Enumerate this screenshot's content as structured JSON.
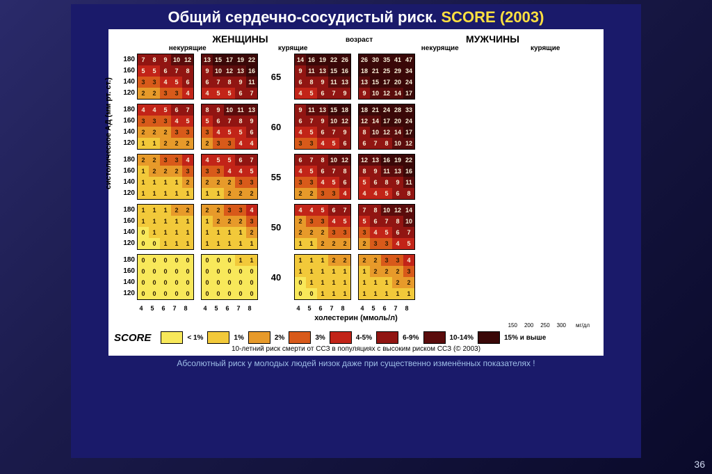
{
  "title_prefix": "Общий сердечно-сосудистый риск. ",
  "title_word": "SCORE",
  "title_year": " (2003)",
  "header_women": "ЖЕНЩИНЫ",
  "header_men": "МУЖЧИНЫ",
  "header_age": "возраст",
  "sub_nonsm": "некурящие",
  "sub_sm": "курящие",
  "y_axis": "систолическое АД  (мм рт. ст.)",
  "x_axis": "холестерин  (ммоль/л)",
  "bp_labels": [
    "180",
    "160",
    "140",
    "120"
  ],
  "chol_labels": [
    "4",
    "5",
    "6",
    "7",
    "8"
  ],
  "mgdl": [
    "150",
    "200",
    "250",
    "300"
  ],
  "mgdl_unit": "мг/дл",
  "ages": [
    "65",
    "60",
    "55",
    "50",
    "40"
  ],
  "colors": {
    "c0": "#f8e85a",
    "c1": "#f2c93a",
    "c2": "#e79a2a",
    "c3": "#d85a1a",
    "c4": "#c22418",
    "c5": "#911512",
    "c6": "#5a0c0c",
    "c7": "#3a0808"
  },
  "text_dark": "#2a1a00",
  "text_light": "#f8f0d8",
  "legend_labels": [
    "< 1%",
    "1%",
    "2%",
    "3%",
    "4-5%",
    "6-9%",
    "10-14%",
    "15% и выше"
  ],
  "score_word": "SCORE",
  "source": "10-летний риск смерти от ССЗ в популяциях с высоким риском ССЗ (© 2003)",
  "footnote": "Абсолютный риск у молодых людей низок даже при существенно изменённых показателях !",
  "pagenum": "36",
  "grids": {
    "65": {
      "wn": [
        [
          7,
          8,
          9,
          10,
          12
        ],
        [
          5,
          5,
          6,
          7,
          8
        ],
        [
          3,
          3,
          4,
          5,
          6
        ],
        [
          2,
          2,
          3,
          3,
          4
        ]
      ],
      "ws": [
        [
          13,
          15,
          17,
          19,
          22
        ],
        [
          9,
          10,
          12,
          13,
          16
        ],
        [
          6,
          7,
          8,
          9,
          11
        ],
        [
          4,
          5,
          5,
          6,
          7
        ]
      ],
      "mn": [
        [
          14,
          16,
          19,
          22,
          26
        ],
        [
          9,
          11,
          13,
          15,
          16
        ],
        [
          6,
          8,
          9,
          11,
          13
        ],
        [
          4,
          5,
          6,
          7,
          9
        ]
      ],
      "ms": [
        [
          26,
          30,
          35,
          41,
          47
        ],
        [
          18,
          21,
          25,
          29,
          34
        ],
        [
          13,
          15,
          17,
          20,
          24
        ],
        [
          9,
          10,
          12,
          14,
          17
        ]
      ]
    },
    "60": {
      "wn": [
        [
          4,
          4,
          5,
          6,
          7
        ],
        [
          3,
          3,
          3,
          4,
          5
        ],
        [
          2,
          2,
          2,
          3,
          3
        ],
        [
          1,
          1,
          2,
          2,
          2
        ]
      ],
      "ws": [
        [
          8,
          9,
          10,
          11,
          13
        ],
        [
          5,
          6,
          7,
          8,
          9
        ],
        [
          3,
          4,
          5,
          5,
          6
        ],
        [
          2,
          3,
          3,
          4,
          4
        ]
      ],
      "mn": [
        [
          9,
          11,
          13,
          15,
          18
        ],
        [
          6,
          7,
          9,
          10,
          12
        ],
        [
          4,
          5,
          6,
          7,
          9
        ],
        [
          3,
          3,
          4,
          5,
          6
        ]
      ],
      "ms": [
        [
          18,
          21,
          24,
          28,
          33
        ],
        [
          12,
          14,
          17,
          20,
          24
        ],
        [
          8,
          10,
          12,
          14,
          17
        ],
        [
          6,
          7,
          8,
          10,
          12
        ]
      ]
    },
    "55": {
      "wn": [
        [
          2,
          2,
          3,
          3,
          4
        ],
        [
          1,
          2,
          2,
          2,
          3
        ],
        [
          1,
          1,
          1,
          1,
          2
        ],
        [
          1,
          1,
          1,
          1,
          1
        ]
      ],
      "ws": [
        [
          4,
          5,
          5,
          6,
          7
        ],
        [
          3,
          3,
          4,
          4,
          5
        ],
        [
          2,
          2,
          2,
          3,
          3
        ],
        [
          1,
          1,
          2,
          2,
          2
        ]
      ],
      "mn": [
        [
          6,
          7,
          8,
          10,
          12
        ],
        [
          4,
          5,
          6,
          7,
          8
        ],
        [
          3,
          3,
          4,
          5,
          6
        ],
        [
          2,
          2,
          3,
          3,
          4
        ]
      ],
      "ms": [
        [
          12,
          13,
          16,
          19,
          22
        ],
        [
          8,
          9,
          11,
          13,
          16
        ],
        [
          5,
          6,
          8,
          9,
          11
        ],
        [
          4,
          4,
          5,
          6,
          8
        ]
      ]
    },
    "50": {
      "wn": [
        [
          1,
          1,
          1,
          2,
          2
        ],
        [
          1,
          1,
          1,
          1,
          1
        ],
        [
          0,
          1,
          1,
          1,
          1
        ],
        [
          0,
          0,
          1,
          1,
          1
        ]
      ],
      "ws": [
        [
          2,
          2,
          3,
          3,
          4
        ],
        [
          1,
          2,
          2,
          2,
          3
        ],
        [
          1,
          1,
          1,
          1,
          2
        ],
        [
          1,
          1,
          1,
          1,
          1
        ]
      ],
      "mn": [
        [
          4,
          4,
          5,
          6,
          7
        ],
        [
          2,
          3,
          3,
          4,
          5
        ],
        [
          2,
          2,
          2,
          3,
          3
        ],
        [
          1,
          1,
          2,
          2,
          2
        ]
      ],
      "ms": [
        [
          7,
          8,
          10,
          12,
          14
        ],
        [
          5,
          6,
          7,
          8,
          10
        ],
        [
          3,
          4,
          5,
          6,
          7
        ],
        [
          2,
          3,
          3,
          4,
          5
        ]
      ]
    },
    "40": {
      "wn": [
        [
          0,
          0,
          0,
          0,
          0
        ],
        [
          0,
          0,
          0,
          0,
          0
        ],
        [
          0,
          0,
          0,
          0,
          0
        ],
        [
          0,
          0,
          0,
          0,
          0
        ]
      ],
      "ws": [
        [
          0,
          0,
          0,
          1,
          1
        ],
        [
          0,
          0,
          0,
          0,
          0
        ],
        [
          0,
          0,
          0,
          0,
          0
        ],
        [
          0,
          0,
          0,
          0,
          0
        ]
      ],
      "mn": [
        [
          1,
          1,
          1,
          2,
          2
        ],
        [
          1,
          1,
          1,
          1,
          1
        ],
        [
          0,
          1,
          1,
          1,
          1
        ],
        [
          0,
          0,
          1,
          1,
          1
        ]
      ],
      "ms": [
        [
          2,
          2,
          3,
          3,
          4
        ],
        [
          1,
          2,
          2,
          2,
          3
        ],
        [
          1,
          1,
          1,
          2,
          2
        ],
        [
          1,
          1,
          1,
          1,
          1
        ]
      ]
    }
  }
}
